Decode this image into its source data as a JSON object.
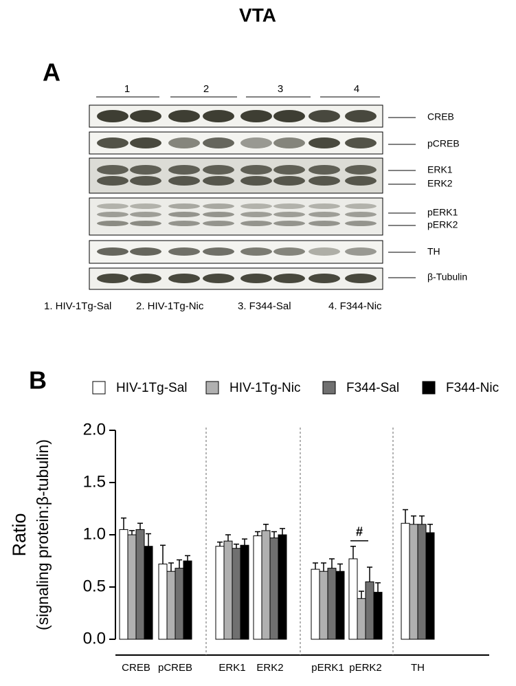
{
  "figure": {
    "title": "VTA",
    "panel_a": "A",
    "panel_b": "B",
    "lanes": [
      "1",
      "2",
      "3",
      "4"
    ],
    "proteins": [
      "CREB",
      "pCREB",
      "ERK1",
      "ERK2",
      "pERK1",
      "pERK2",
      "TH",
      "β-Tubulin"
    ],
    "groups": [
      "1. HIV-1Tg-Sal",
      "2. HIV-1Tg-Nic",
      "3. F344-Sal",
      "4.  F344-Nic"
    ]
  },
  "chart_data": {
    "type": "bar",
    "y_label": "Ratio",
    "y_label_sub": "(signaling protein:β-tubulin)",
    "categories": [
      "CREB",
      "pCREB",
      "ERK1",
      "ERK2",
      "pERK1",
      "pERK2",
      "TH"
    ],
    "series": [
      {
        "name": "HIV-1Tg-Sal",
        "color": "#ffffff",
        "values": [
          1.05,
          0.72,
          0.89,
          0.99,
          0.67,
          0.77,
          1.11
        ],
        "errors": [
          0.11,
          0.18,
          0.04,
          0.04,
          0.06,
          0.12,
          0.13
        ]
      },
      {
        "name": "HIV-1Tg-Nic",
        "color": "#b0b0b0",
        "values": [
          1.0,
          0.65,
          0.94,
          1.04,
          0.65,
          0.39,
          1.1
        ],
        "errors": [
          0.04,
          0.08,
          0.06,
          0.06,
          0.08,
          0.07,
          0.08
        ]
      },
      {
        "name": "F344-Sal",
        "color": "#707070",
        "values": [
          1.05,
          0.68,
          0.87,
          0.97,
          0.68,
          0.55,
          1.1
        ],
        "errors": [
          0.06,
          0.08,
          0.04,
          0.06,
          0.09,
          0.14,
          0.08
        ]
      },
      {
        "name": "F344-Nic",
        "color": "#000000",
        "values": [
          0.89,
          0.75,
          0.9,
          1.0,
          0.65,
          0.45,
          1.02
        ],
        "errors": [
          0.12,
          0.05,
          0.06,
          0.06,
          0.07,
          0.09,
          0.08
        ]
      }
    ],
    "annotations": [
      {
        "text": "#",
        "category": "pERK2"
      }
    ],
    "ylim": [
      0,
      2
    ],
    "yticks": [
      {
        "value": 0,
        "label": "0.0"
      },
      0.5,
      {
        "value": 1,
        "label": "1.0"
      },
      1.5,
      {
        "value": 2,
        "label": "2.0"
      }
    ],
    "legend": "top"
  }
}
